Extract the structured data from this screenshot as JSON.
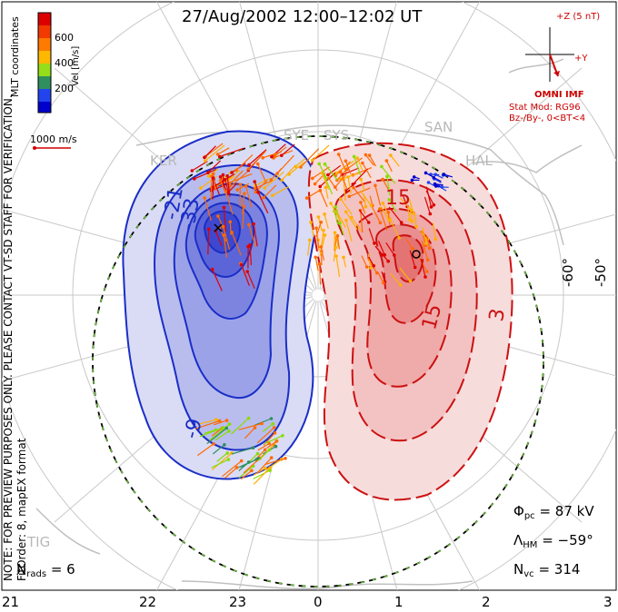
{
  "header": {
    "title": "27/Aug/2002 12:00–12:02 UT"
  },
  "imf": {
    "top_label": "+Z (5 nT)",
    "y_label": "+Y",
    "source": "OMNI IMF",
    "model_line1": "Stat Mod: RG96",
    "model_line2": "Bz-/By-, 0<BT<4"
  },
  "colorbar": {
    "label": "Vel [m/s]",
    "ticks": [
      "600",
      "400",
      "200"
    ],
    "colors": [
      "#dd0000",
      "#ff6a00",
      "#ffb000",
      "#88dd00",
      "#2f8f5f",
      "#2244ee",
      "#0000cc"
    ]
  },
  "velocity_scale": {
    "label": "1000 m/s"
  },
  "side_notes": {
    "coordinates": "MLT coordinates",
    "preview": "NOTE: FOR PREVIEW PURPOSES ONLY. PLEASE CONTACT VT-SD STAFF FOR VERIFICATION.",
    "fit": "FitOrder: 8, mapEX format"
  },
  "stations": [
    {
      "code": "KER"
    },
    {
      "code": "SYE"
    },
    {
      "code": "SYS"
    },
    {
      "code": "SAN"
    },
    {
      "code": "HAL"
    },
    {
      "code": "TIG"
    }
  ],
  "contour_labels": [
    "-21",
    "-33",
    "-9",
    "15",
    "15",
    "3"
  ],
  "latitude_labels": [
    "-60°",
    "-50°"
  ],
  "mlt_labels": [
    "21",
    "22",
    "23",
    "0",
    "1",
    "2",
    "3"
  ],
  "stats": {
    "phi_pc": {
      "symbol": "Φ",
      "sub": "pc",
      "value": "= 87 kV"
    },
    "lambda_hm": {
      "symbol": "Λ",
      "sub": "HM",
      "value": "= −59°"
    },
    "n_vc": {
      "symbol": "N",
      "sub": "vc",
      "value": "= 314"
    },
    "n_rads": {
      "symbol": "N",
      "sub": "rads",
      "value": "= 6"
    }
  }
}
